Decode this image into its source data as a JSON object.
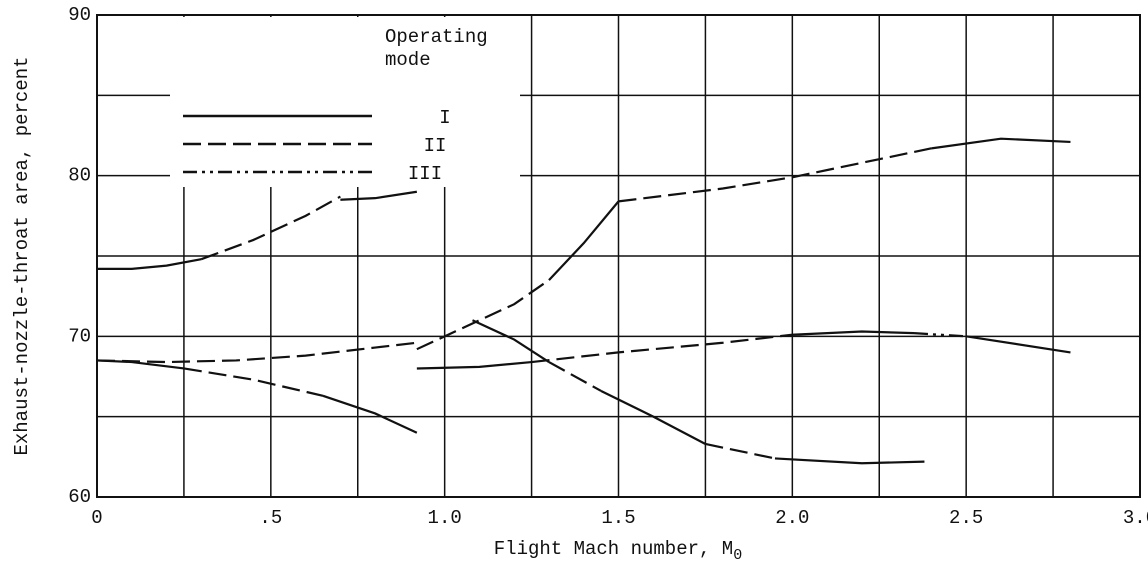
{
  "chart_data": {
    "type": "line",
    "x_label": "Flight Mach number, M",
    "x_label_sub": "0",
    "y_label": "Exhaust-nozzle-throat area, percent",
    "legend_title": [
      "Operating",
      "mode"
    ],
    "legend": "upper left",
    "color": "#111111",
    "xlim": [
      0,
      3
    ],
    "ylim": [
      60,
      90
    ],
    "xticks": [
      0,
      {
        "value": 0.5,
        "label": ".5"
      },
      {
        "value": 1,
        "label": "1.0"
      },
      1.5,
      {
        "value": 2,
        "label": "2.0"
      },
      2.5,
      {
        "value": 3,
        "label": "3.0"
      }
    ],
    "yticks": [
      60,
      70,
      80,
      90
    ],
    "xgrid": [
      0,
      0.25,
      0.5,
      0.75,
      1,
      1.25,
      1.5,
      1.75,
      2,
      2.25,
      2.5,
      2.75,
      3
    ],
    "ygrid": [
      60,
      65,
      70,
      75,
      80,
      85,
      90
    ],
    "series": [
      {
        "name": "I",
        "dash": "solid",
        "segments": [
          {
            "x": [
              0,
              0.1,
              0.2,
              0.3
            ],
            "values": [
              74.2,
              74.2,
              74.4,
              74.8
            ]
          },
          {
            "x": [
              0.7,
              0.8,
              0.92
            ],
            "values": [
              78.5,
              78.6,
              79
            ]
          },
          {
            "x": [
              1.3,
              1.4,
              1.5
            ],
            "values": [
              73.5,
              75.8,
              78.4
            ]
          },
          {
            "x": [
              2.4,
              2.6,
              2.8
            ],
            "values": [
              81.7,
              82.3,
              82.1
            ]
          },
          {
            "x": [
              0,
              0.1,
              0.25
            ],
            "values": [
              68.5,
              68.4,
              68
            ]
          },
          {
            "x": [
              0.65,
              0.8,
              0.92
            ],
            "values": [
              66.3,
              65.2,
              64
            ]
          },
          {
            "x": [
              1.08,
              1.2,
              1.3
            ],
            "values": [
              71,
              69.8,
              68.4
            ]
          },
          {
            "x": [
              1.45,
              1.6,
              1.75
            ],
            "values": [
              66.6,
              65,
              63.3
            ]
          },
          {
            "x": [
              1.95,
              2.2,
              2.38
            ],
            "values": [
              62.4,
              62.1,
              62.2
            ]
          },
          {
            "x": [
              0.92,
              1.1,
              1.25
            ],
            "values": [
              68,
              68.1,
              68.4
            ]
          },
          {
            "x": [
              2,
              2.2,
              2.35
            ],
            "values": [
              70.1,
              70.3,
              70.2
            ]
          },
          {
            "x": [
              2.5,
              2.8
            ],
            "values": [
              70,
              69
            ]
          }
        ]
      },
      {
        "name": "II",
        "dash": "18 7",
        "segments": [
          {
            "x": [
              0.3,
              0.45,
              0.6,
              0.7
            ],
            "values": [
              74.8,
              76,
              77.5,
              78.7
            ]
          },
          {
            "x": [
              0.92,
              1,
              1.1,
              1.2,
              1.3
            ],
            "values": [
              69.2,
              70,
              71,
              72,
              73.5
            ]
          },
          {
            "x": [
              1.5,
              1.8,
              2,
              2.2,
              2.4
            ],
            "values": [
              78.4,
              79.2,
              79.9,
              80.8,
              81.7
            ]
          },
          {
            "x": [
              0,
              0.2,
              0.4,
              0.6,
              0.8,
              0.92
            ],
            "values": [
              68.5,
              68.4,
              68.5,
              68.8,
              69.3,
              69.6
            ]
          },
          {
            "x": [
              0.25,
              0.45,
              0.65
            ],
            "values": [
              68,
              67.3,
              66.3
            ]
          },
          {
            "x": [
              1.3,
              1.45
            ],
            "values": [
              68.4,
              66.6
            ]
          },
          {
            "x": [
              1.75,
              1.95
            ],
            "values": [
              63.3,
              62.4
            ]
          },
          {
            "x": [
              1.25,
              1.5,
              1.8,
              2
            ],
            "values": [
              68.4,
              69,
              69.6,
              70.1
            ]
          }
        ]
      },
      {
        "name": "III",
        "dash": "14 5 3 5 3 5",
        "segments": [
          {
            "x": [
              2.35,
              2.5
            ],
            "values": [
              70.2,
              70
            ]
          }
        ]
      }
    ]
  }
}
